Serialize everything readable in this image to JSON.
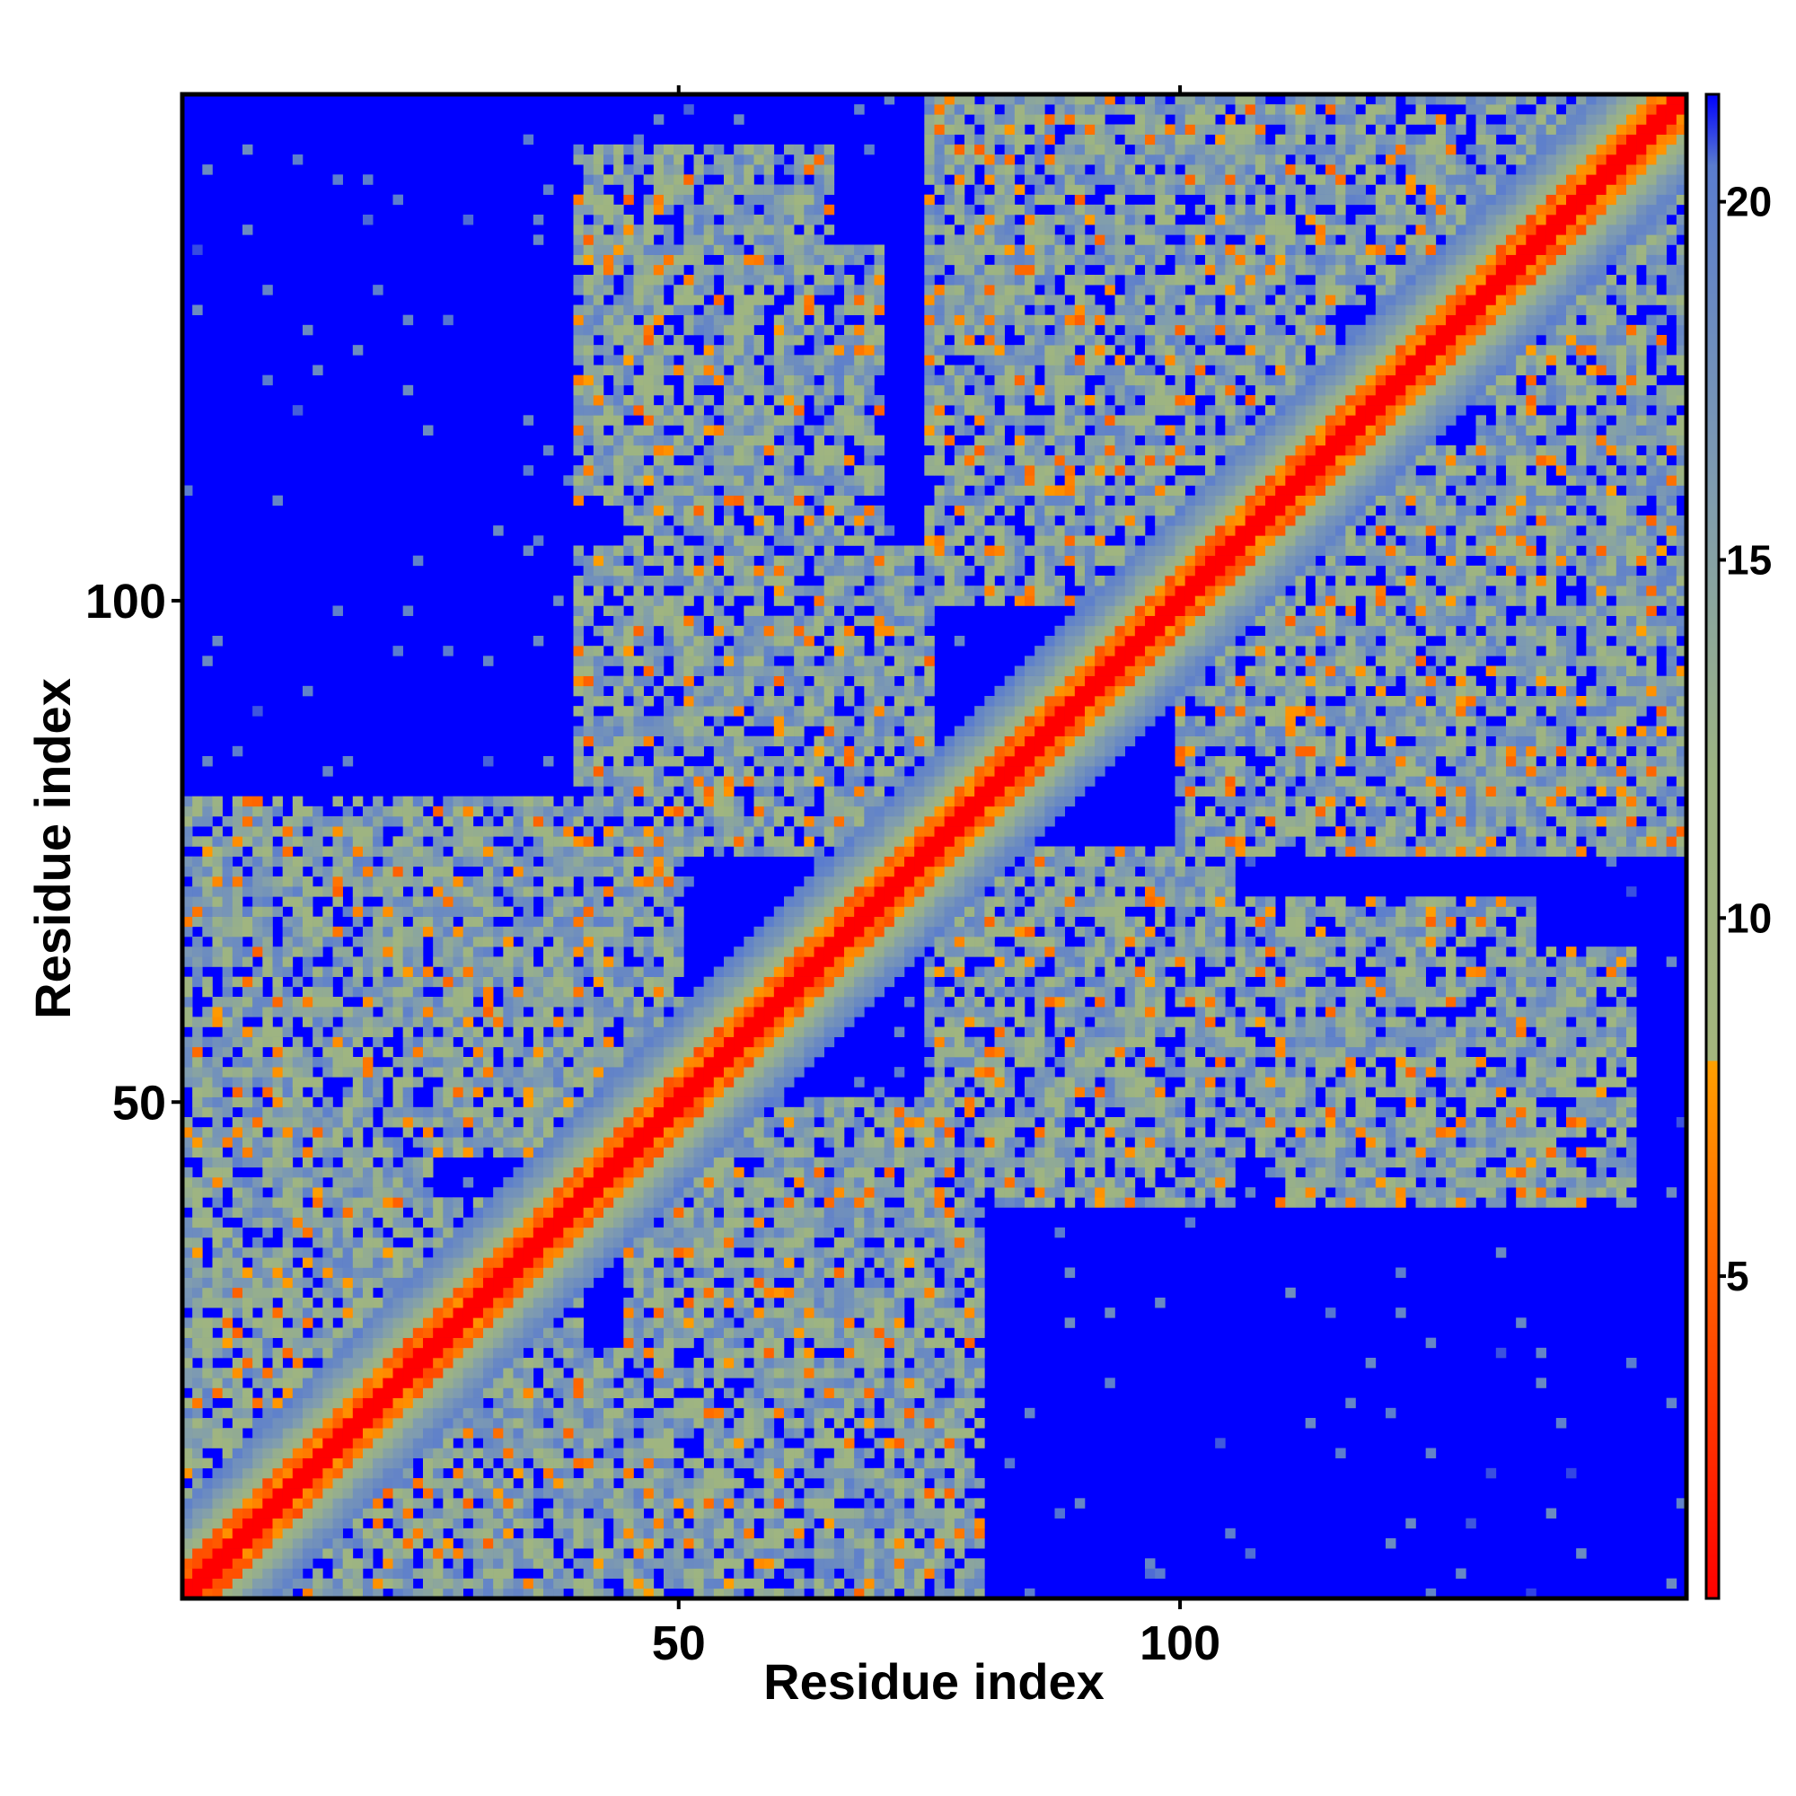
{
  "chart_data": {
    "type": "heatmap",
    "title": "",
    "xlabel": "Residue index",
    "ylabel": "Residue index",
    "n_residues": 150,
    "xlim": [
      1,
      150
    ],
    "ylim": [
      1,
      150
    ],
    "x_ticks": [
      50,
      100
    ],
    "y_ticks": [
      50,
      100
    ],
    "colorbar": {
      "ticks": [
        5,
        10,
        15,
        20
      ],
      "range": [
        0.5,
        21.5
      ],
      "stops": [
        {
          "value": 0.5,
          "color": "#ff0000"
        },
        {
          "value": 4.0,
          "color": "#ff4a00"
        },
        {
          "value": 8.0,
          "color": "#ffa000"
        },
        {
          "value": 8.01,
          "color": "#a4b67e"
        },
        {
          "value": 12.0,
          "color": "#9db482"
        },
        {
          "value": 16.0,
          "color": "#7f9cb0"
        },
        {
          "value": 20.5,
          "color": "#5a7ccf"
        },
        {
          "value": 21.5,
          "color": "#0000ff"
        }
      ]
    },
    "values_description": "Symmetric residue-residue distance matrix; near-zero values (red) on the main diagonal, intermediate values (orange/olive/steel-blue) in contact bands, values >= 21 (blue) elsewhere.",
    "diagonal_value": 0.5,
    "background_value": 21.5,
    "contact_regions": [
      {
        "x": [
          1,
          25
        ],
        "y": [
          30,
          80
        ]
      },
      {
        "x": [
          20,
          50
        ],
        "y": [
          55,
          80
        ]
      },
      {
        "x": [
          40,
          65
        ],
        "y": [
          110,
          145
        ]
      },
      {
        "x": [
          45,
          70
        ],
        "y": [
          95,
          125
        ]
      },
      {
        "x": [
          45,
          75
        ],
        "y": [
          10,
          45
        ]
      },
      {
        "x": [
          75,
          110
        ],
        "y": [
          115,
          150
        ]
      },
      {
        "x": [
          75,
          100
        ],
        "y": [
          105,
          130
        ]
      },
      {
        "x": [
          75,
          105
        ],
        "y": [
          40,
          75
        ]
      },
      {
        "x": [
          105,
          135
        ],
        "y": [
          45,
          70
        ]
      },
      {
        "x": [
          100,
          150
        ],
        "y": [
          75,
          115
        ]
      },
      {
        "x": [
          110,
          140
        ],
        "y": [
          130,
          150
        ]
      },
      {
        "x": [
          130,
          150
        ],
        "y": [
          105,
          140
        ]
      },
      {
        "x": [
          1,
          40
        ],
        "y": [
          1,
          30
        ]
      }
    ]
  }
}
